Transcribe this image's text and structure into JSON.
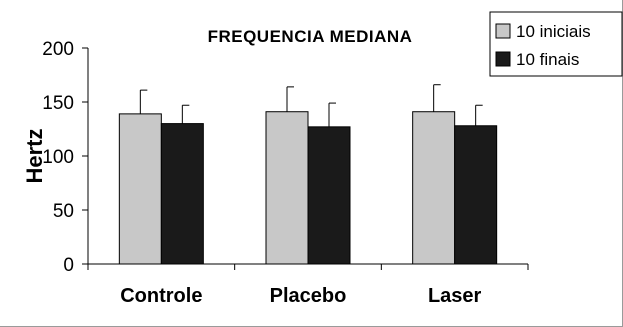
{
  "chart_data": {
    "type": "bar",
    "title": "FREQUENCIA MEDIANA",
    "ylabel": "Hertz",
    "xlabel": "",
    "ylim": [
      0,
      200
    ],
    "yticks": [
      0,
      50,
      100,
      150,
      200
    ],
    "ytick_labels": [
      "0",
      "50",
      "100",
      "150",
      "200"
    ],
    "categories": [
      "Controle",
      "Placebo",
      "Laser"
    ],
    "series": [
      {
        "name": "10 iniciais",
        "color": "#c8c8c8",
        "values": [
          139,
          141,
          141
        ],
        "errors": [
          22,
          23,
          25
        ]
      },
      {
        "name": "10 finais",
        "color": "#1a1a1a",
        "values": [
          130,
          127,
          128
        ],
        "errors": [
          17,
          22,
          19
        ]
      }
    ],
    "grid": false,
    "legend": "top-right"
  }
}
